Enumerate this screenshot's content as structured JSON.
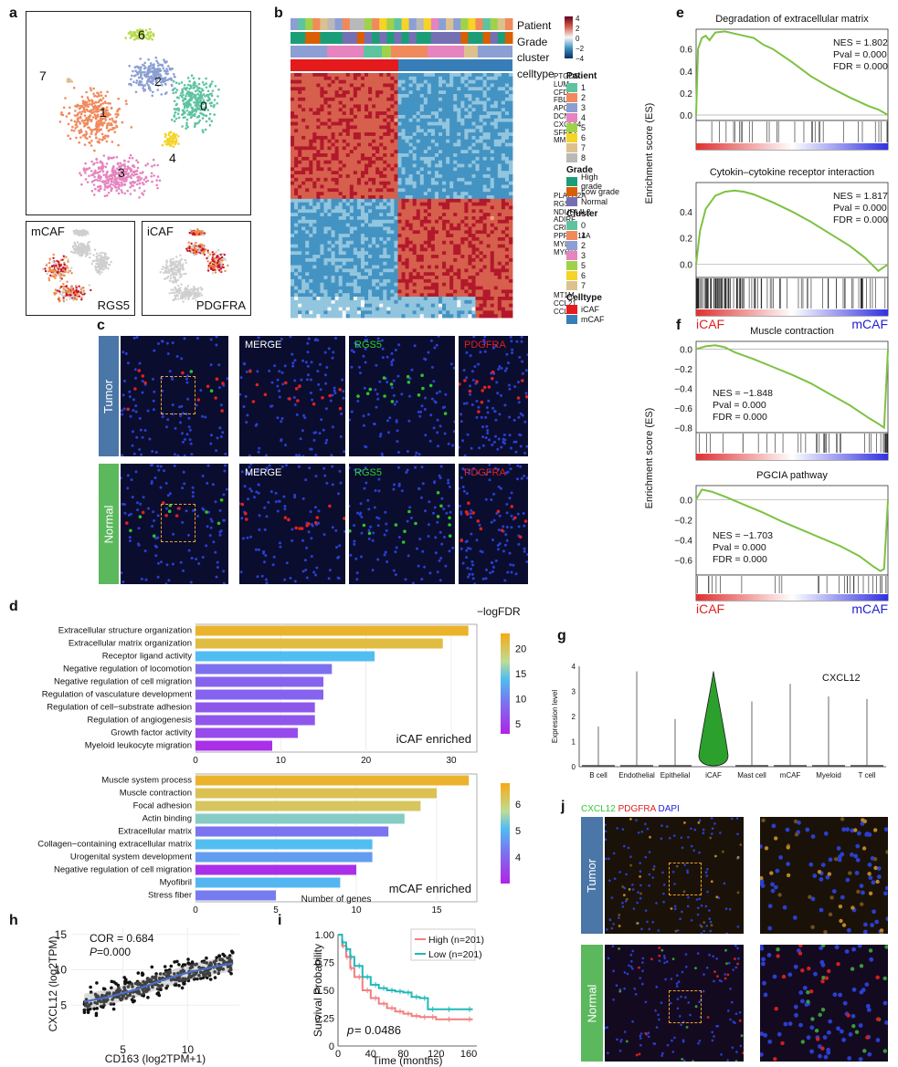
{
  "panels": {
    "a": {
      "label": "a",
      "clusters": [
        "0",
        "1",
        "2",
        "3",
        "4",
        "6",
        "7"
      ],
      "insets": [
        {
          "title": "mCAF",
          "gene": "RGS5"
        },
        {
          "title": "iCAF",
          "gene": "PDGFRA"
        }
      ]
    },
    "b": {
      "label": "b",
      "row_labels": [
        "Patient",
        "Grade",
        "cluster",
        "celltype"
      ],
      "scale_ticks": [
        "4",
        "2",
        "0",
        "−2",
        "−4"
      ],
      "genes_top": [
        "PTGDS",
        "LUM",
        "CFD",
        "FBLN1",
        "APOD",
        "DCN",
        "CXCL14",
        "SFRP2",
        "MMP2"
      ],
      "genes_mid": [
        "PLA2G2A",
        "RGS5",
        "NDUFA4L2",
        "ADIRF",
        "CRIP1",
        "PPP1R14A",
        "MYL9",
        "MYH11"
      ],
      "genes_bot": [
        "MT1M",
        "CCL21",
        "CCL19"
      ],
      "legend": {
        "patient_title": "Patient",
        "patients": [
          {
            "name": "1",
            "color": "#5ec3a1"
          },
          {
            "name": "2",
            "color": "#f08a5d"
          },
          {
            "name": "3",
            "color": "#8c9fd4"
          },
          {
            "name": "4",
            "color": "#e584bf"
          },
          {
            "name": "5",
            "color": "#9fd24a"
          },
          {
            "name": "6",
            "color": "#f5d327"
          },
          {
            "name": "7",
            "color": "#dcc18e"
          },
          {
            "name": "8",
            "color": "#b9b9b9"
          }
        ],
        "grade_title": "Grade",
        "grades": [
          {
            "name": "High grade",
            "color": "#1b9e77"
          },
          {
            "name": "Low grade",
            "color": "#d95f02"
          },
          {
            "name": "Normal",
            "color": "#7570b3"
          }
        ],
        "cluster_title": "Cluster",
        "clusters": [
          {
            "name": "0",
            "color": "#5ec3a1"
          },
          {
            "name": "1",
            "color": "#f08a5d"
          },
          {
            "name": "2",
            "color": "#8c9fd4"
          },
          {
            "name": "3",
            "color": "#e584bf"
          },
          {
            "name": "5",
            "color": "#9fd24a"
          },
          {
            "name": "6",
            "color": "#f5d327"
          },
          {
            "name": "7",
            "color": "#dcc18e"
          }
        ],
        "celltype_title": "Celltype",
        "celltypes": [
          {
            "name": "iCAF",
            "color": "#e41a1c"
          },
          {
            "name": "mCAF",
            "color": "#377eb8"
          }
        ]
      }
    },
    "c": {
      "label": "c",
      "rows": [
        "Tumor",
        "Normal"
      ],
      "channels": [
        "MERGE",
        "RGS5",
        "PDGFRA"
      ]
    },
    "d": {
      "label": "d",
      "cbar_title": "−logFDR",
      "xlabel": "Number of genes",
      "top": {
        "tag": "iCAF enriched",
        "cbar_ticks": [
          "20",
          "15",
          "10",
          "5"
        ],
        "xticks": [
          "0",
          "10",
          "20",
          "30"
        ]
      },
      "bottom": {
        "tag": "mCAF enriched",
        "cbar_ticks": [
          "6",
          "5",
          "4"
        ],
        "xticks": [
          "0",
          "5",
          "10",
          "15"
        ]
      }
    },
    "e": {
      "label": "e",
      "ylabel": "Enrichment score (ES)",
      "left_label": "iCAF",
      "right_label": "mCAF",
      "plots": [
        {
          "title": "Degradation of extracellular matrix",
          "nes": "NES = 1.802",
          "pval": "Pval = 0.000",
          "fdr": "FDR = 0.000",
          "yticks": [
            "0.6",
            "0.4",
            "0.2",
            "0.0"
          ]
        },
        {
          "title": "Cytokin–cytokine receptor interaction",
          "nes": "NES = 1.817",
          "pval": "Pval = 0.000",
          "fdr": "FDR = 0.000",
          "yticks": [
            "0.4",
            "0.2",
            "0.0"
          ]
        }
      ]
    },
    "f": {
      "label": "f",
      "ylabel": "Enrichment score (ES)",
      "left_label": "iCAF",
      "right_label": "mCAF",
      "plots": [
        {
          "title": "Muscle contraction",
          "nes": "NES = −1.848",
          "pval": "Pval = 0.000",
          "fdr": "FDR = 0.000",
          "yticks": [
            "0.0",
            "−0.2",
            "−0.4",
            "−0.6",
            "−0.8"
          ]
        },
        {
          "title": "PGCIA pathway",
          "nes": "NES = −1.703",
          "pval": "Pval = 0.000",
          "fdr": "FDR = 0.000",
          "yticks": [
            "0.0",
            "−0.2",
            "−0.4",
            "−0.6"
          ]
        }
      ]
    },
    "g": {
      "label": "g",
      "gene": "CXCL12",
      "ylabel": "Expression level",
      "yticks": [
        "4",
        "3",
        "2",
        "1",
        "0"
      ]
    },
    "h": {
      "label": "h",
      "cor": "COR = 0.684",
      "p_label": "P",
      "p_value": "=0.000",
      "xlabel": "CD163 (log2TPM+1)",
      "ylabel": "CXCL12 (log2TPM)",
      "xticks": [
        "5",
        "10"
      ],
      "yticks": [
        "15",
        "10",
        "5"
      ]
    },
    "i": {
      "label": "i",
      "ylabel": "Survival Probability",
      "xlabel": "Time (months)",
      "xticks": [
        "0",
        "40",
        "80",
        "120",
        "160"
      ],
      "yticks": [
        "1.00",
        "0.75",
        "0.50",
        "0.25",
        "0"
      ],
      "p_italic": "p",
      "p_value": " = 0.0486",
      "legend_high": "High (n=201)",
      "legend_low": "Low (n=201)",
      "high_color": "#f08080",
      "low_color": "#22b8b8"
    },
    "j": {
      "label": "j",
      "stain_cxcl12": "CXCL12",
      "stain_pdgfra": "PDGFRA",
      "stain_dapi": "DAPI",
      "rows": [
        "Tumor",
        "Normal"
      ]
    }
  },
  "chart_data": [
    {
      "type": "bar",
      "title": "iCAF enriched",
      "xlabel": "Number of genes",
      "categories": [
        "Extracellular structure organization",
        "Extracellular matrix organization",
        "Receptor ligand activity",
        "Negative regulation of locomotion",
        "Negative regulation of cell migration",
        "Regulation of vasculature development",
        "Regulation of cell−substrate adhesion",
        "Regulation of angiogenesis",
        "Growth factor activity",
        "Myeloid leukocyte migration"
      ],
      "values": [
        32,
        29,
        21,
        16,
        15,
        15,
        14,
        14,
        12,
        9
      ],
      "neglogfdr": [
        22,
        21,
        14,
        9,
        8,
        8,
        7,
        7,
        6,
        4
      ],
      "xlim": [
        0,
        33
      ]
    },
    {
      "type": "bar",
      "title": "mCAF enriched",
      "xlabel": "Number of genes",
      "categories": [
        "Muscle system process",
        "Muscle contraction",
        "Focal adhesion",
        "Actin binding",
        "Extracellular matrix",
        "Collagen−containing extracellular matrix",
        "Urogenital system development",
        "Negative regulation of cell migration",
        "Myofibril",
        "Stress fiber"
      ],
      "values": [
        17,
        15,
        14,
        13,
        12,
        11,
        11,
        10,
        9,
        5
      ],
      "neglogfdr": [
        6.6,
        6.3,
        6.2,
        5.4,
        4.2,
        5.1,
        4.7,
        3.2,
        5.0,
        4.3
      ],
      "xlim": [
        0,
        17.5
      ]
    },
    {
      "type": "line",
      "title": "Degradation of extracellular matrix",
      "ylabel": "Enrichment score (ES)",
      "x": [
        0,
        0.01,
        0.03,
        0.05,
        0.07,
        0.1,
        0.15,
        0.2,
        0.25,
        0.3,
        0.35,
        0.4,
        0.5,
        0.6,
        0.7,
        0.8,
        0.9,
        0.95,
        1.0
      ],
      "y": [
        0.0,
        0.6,
        0.7,
        0.72,
        0.68,
        0.75,
        0.76,
        0.74,
        0.72,
        0.7,
        0.64,
        0.6,
        0.48,
        0.35,
        0.25,
        0.16,
        0.08,
        0.05,
        0.0
      ]
    },
    {
      "type": "line",
      "title": "Cytokin–cytokine receptor interaction",
      "ylabel": "Enrichment score (ES)",
      "x": [
        0,
        0.02,
        0.05,
        0.1,
        0.15,
        0.2,
        0.25,
        0.3,
        0.4,
        0.5,
        0.6,
        0.7,
        0.8,
        0.88,
        0.95,
        1.0
      ],
      "y": [
        0.0,
        0.25,
        0.42,
        0.52,
        0.55,
        0.56,
        0.55,
        0.53,
        0.47,
        0.4,
        0.32,
        0.23,
        0.14,
        0.05,
        -0.05,
        0.0
      ]
    },
    {
      "type": "line",
      "title": "Muscle contraction",
      "ylabel": "Enrichment score (ES)",
      "x": [
        0,
        0.05,
        0.1,
        0.15,
        0.2,
        0.3,
        0.4,
        0.5,
        0.6,
        0.7,
        0.8,
        0.9,
        0.95,
        0.98,
        1.0
      ],
      "y": [
        0.0,
        0.03,
        0.04,
        0.02,
        -0.03,
        -0.1,
        -0.18,
        -0.26,
        -0.35,
        -0.46,
        -0.57,
        -0.7,
        -0.76,
        -0.8,
        0.0
      ]
    },
    {
      "type": "line",
      "title": "PGCIA pathway",
      "ylabel": "Enrichment score (ES)",
      "x": [
        0,
        0.03,
        0.08,
        0.15,
        0.25,
        0.35,
        0.45,
        0.55,
        0.65,
        0.75,
        0.85,
        0.92,
        0.96,
        0.98,
        1.0
      ],
      "y": [
        0.0,
        0.1,
        0.08,
        0.03,
        -0.05,
        -0.13,
        -0.22,
        -0.3,
        -0.38,
        -0.46,
        -0.56,
        -0.66,
        -0.71,
        -0.69,
        0.0
      ]
    },
    {
      "type": "violin",
      "title": "CXCL12",
      "ylabel": "Expression level",
      "categories": [
        "B cell",
        "Endothelial",
        "Epithelial",
        "iCAF",
        "Mast cell",
        "mCAF",
        "Myeloid",
        "T cell"
      ],
      "max_values": [
        1.6,
        3.8,
        1.9,
        3.8,
        2.6,
        3.3,
        2.8,
        2.7
      ],
      "ylim": [
        0,
        4
      ]
    },
    {
      "type": "scatter",
      "title": "",
      "xlabel": "CD163 (log2TPM+1)",
      "ylabel": "CXCL12 (log2TPM)",
      "cor": 0.684,
      "p": 0.0,
      "xlim": [
        1,
        14
      ],
      "ylim": [
        0,
        16
      ],
      "trend_x": [
        2,
        4,
        6,
        8,
        10,
        12,
        13.5
      ],
      "trend_y": [
        5.5,
        6.2,
        7.2,
        8.5,
        9.6,
        10.4,
        10.9
      ]
    },
    {
      "type": "line",
      "title": "",
      "xlabel": "Time (months)",
      "ylabel": "Survival Probability",
      "series": [
        {
          "name": "High (n=201)",
          "x": [
            0,
            5,
            10,
            15,
            20,
            30,
            40,
            50,
            60,
            70,
            80,
            90,
            100,
            110,
            120,
            140,
            165
          ],
          "y": [
            1.0,
            0.9,
            0.8,
            0.7,
            0.62,
            0.5,
            0.43,
            0.38,
            0.34,
            0.31,
            0.29,
            0.27,
            0.26,
            0.26,
            0.24,
            0.24,
            0.24
          ]
        },
        {
          "name": "Low (n=201)",
          "x": [
            0,
            5,
            10,
            15,
            20,
            30,
            40,
            50,
            60,
            70,
            80,
            90,
            100,
            110,
            120,
            140,
            165
          ],
          "y": [
            1.0,
            0.93,
            0.87,
            0.8,
            0.72,
            0.62,
            0.55,
            0.52,
            0.5,
            0.49,
            0.48,
            0.44,
            0.43,
            0.33,
            0.33,
            0.33,
            0.33
          ]
        }
      ],
      "xlim": [
        0,
        170
      ],
      "ylim": [
        0,
        1
      ],
      "p": 0.0486
    }
  ]
}
